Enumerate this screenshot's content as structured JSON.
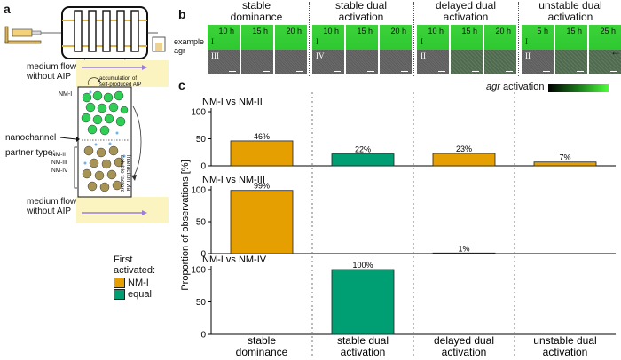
{
  "panels": {
    "a": "a",
    "b": "b",
    "c": "c"
  },
  "panel_a": {
    "medium_flow_top": "medium flow\nwithout AIP",
    "medium_flow_bottom": "medium flow\nwithout AIP",
    "accumulation": "accumulation of\nself-produced AIP",
    "nm1": "NM-I",
    "nanochannel": "nanochannel",
    "partner_type": "partner type:",
    "partners": [
      "NM-II",
      "NM-III",
      "NM-IV"
    ],
    "interaction": "interaction via\nsoluble factors"
  },
  "panel_b": {
    "conditions": [
      "stable\ndominance",
      "stable dual\nactivation",
      "delayed dual\nactivation",
      "unstable dual\nactivation"
    ],
    "times": [
      [
        "10 h",
        "15 h",
        "20 h"
      ],
      [
        "10 h",
        "15 h",
        "20 h"
      ],
      [
        "10 h",
        "15 h",
        "20 h"
      ],
      [
        "5 h",
        "15 h",
        "25 h"
      ]
    ],
    "top_roman": [
      "I",
      "I",
      "I",
      "I"
    ],
    "bottom_roman": [
      "III",
      "IV",
      "II",
      "II"
    ],
    "example_agr": "example\nagr",
    "colorbar_label_italic": "agr",
    "colorbar_label": " activation"
  },
  "legend": {
    "title": "First\nactivated:",
    "items": [
      {
        "label": "NM-I",
        "color": "#E69F00"
      },
      {
        "label": "equal",
        "color": "#009E73"
      }
    ]
  },
  "chart_data": {
    "type": "bar",
    "ylabel": "Proportion of observations [%]",
    "categories": [
      "stable\ndominance",
      "stable dual\nactivation",
      "delayed dual\nactivation",
      "unstable dual\nactivation"
    ],
    "ylim": [
      0,
      100
    ],
    "yticks": [
      0,
      50,
      100
    ],
    "panels": [
      {
        "title": "NM-I vs NM-II",
        "values": [
          46,
          22,
          23,
          7
        ],
        "labels": [
          "46%",
          "22%",
          "23%",
          "7%"
        ],
        "colors": [
          "#E69F00",
          "#009E73",
          "#E69F00",
          "#E69F00"
        ]
      },
      {
        "title": "NM-I vs NM-III",
        "values": [
          99,
          0,
          1,
          0
        ],
        "labels": [
          "99%",
          "",
          "1%",
          ""
        ],
        "colors": [
          "#E69F00",
          "#E69F00",
          "#E69F00",
          "#E69F00"
        ]
      },
      {
        "title": "NM-I vs NM-IV",
        "values": [
          0,
          100,
          0,
          0
        ],
        "labels": [
          "",
          "100%",
          "",
          ""
        ],
        "colors": [
          "#E69F00",
          "#009E73",
          "#E69F00",
          "#E69F00"
        ]
      }
    ]
  }
}
